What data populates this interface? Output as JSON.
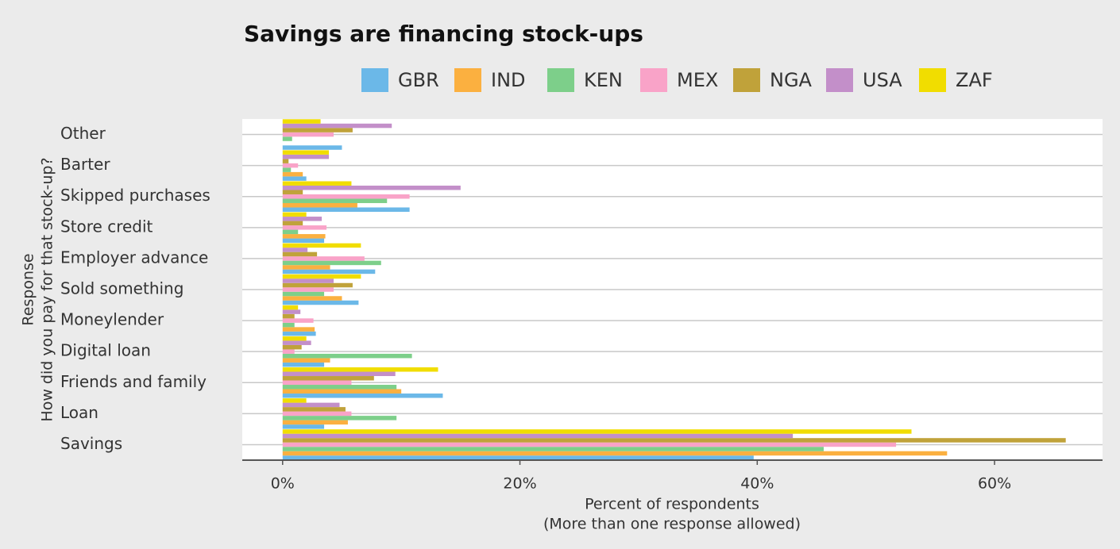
{
  "chart_data": {
    "type": "hbar",
    "title": "Savings are financing stock-ups",
    "x_label": [
      "Percent of respondents",
      "(More than one response allowed)"
    ],
    "y_label": [
      "Response",
      "How did you pay for that stock-up?"
    ],
    "categories": [
      "Other",
      "Barter",
      "Skipped purchases",
      "Store credit",
      "Employer advance",
      "Sold something",
      "Moneylender",
      "Digital loan",
      "Friends and family",
      "Loan",
      "Savings"
    ],
    "series": [
      {
        "name": "GBR",
        "color": "#6bb8e8",
        "values": [
          5,
          2,
          10.7,
          3.5,
          7.8,
          6.4,
          2.8,
          3.5,
          13.5,
          3.5,
          39.7
        ]
      },
      {
        "name": "IND",
        "color": "#fbb040",
        "values": [
          0,
          1.7,
          6.3,
          3.6,
          4,
          5,
          2.7,
          4,
          10,
          5.5,
          56
        ]
      },
      {
        "name": "KEN",
        "color": "#7dcf8a",
        "values": [
          0.8,
          0.7,
          8.8,
          1.3,
          8.3,
          3.5,
          1,
          10.9,
          9.6,
          9.6,
          45.6
        ]
      },
      {
        "name": "MEX",
        "color": "#f9a3c8",
        "values": [
          4.3,
          1.3,
          10.7,
          3.7,
          6.9,
          4.3,
          2.6,
          1,
          5.8,
          5.8,
          51.7
        ]
      },
      {
        "name": "NGA",
        "color": "#c0a23a",
        "values": [
          5.9,
          0.5,
          1.7,
          1.7,
          2.9,
          5.9,
          1,
          1.6,
          7.7,
          5.3,
          66
        ]
      },
      {
        "name": "USA",
        "color": "#c38fc9",
        "values": [
          9.2,
          3.9,
          15,
          3.3,
          2.1,
          4.3,
          1.5,
          2.4,
          9.5,
          4.8,
          43
        ]
      },
      {
        "name": "ZAF",
        "color": "#f1dd00",
        "values": [
          3.2,
          3.9,
          5.8,
          2,
          6.6,
          6.6,
          1.3,
          2,
          13.1,
          2,
          53
        ]
      }
    ],
    "xlim": [
      -3.4,
      69.1
    ],
    "xticks": [
      {
        "value": 0,
        "label": "0%"
      },
      {
        "value": 20,
        "label": "20%"
      },
      {
        "value": 40,
        "label": "40%"
      },
      {
        "value": 60,
        "label": "60%"
      }
    ]
  }
}
